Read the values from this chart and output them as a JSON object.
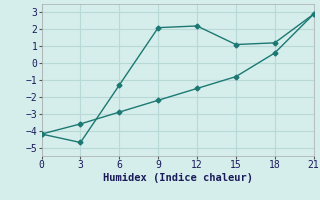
{
  "line1_x": [
    0,
    3,
    6,
    9,
    12,
    15,
    18,
    21
  ],
  "line1_y": [
    -4.2,
    -4.7,
    -1.3,
    2.1,
    2.2,
    1.1,
    1.2,
    2.9
  ],
  "line2_x": [
    0,
    3,
    6,
    9,
    12,
    15,
    18,
    21
  ],
  "line2_y": [
    -4.2,
    -3.6,
    -2.9,
    -2.2,
    -1.5,
    -0.8,
    0.6,
    2.9
  ],
  "color": "#1c7872",
  "bg_color": "#d5eeec",
  "grid_color": "#b8d9d7",
  "xlabel": "Humidex (Indice chaleur)",
  "xlim": [
    0,
    21
  ],
  "ylim": [
    -5.5,
    3.5
  ],
  "xticks": [
    0,
    3,
    6,
    9,
    12,
    15,
    18,
    21
  ],
  "yticks": [
    -5,
    -4,
    -3,
    -2,
    -1,
    0,
    1,
    2,
    3
  ],
  "marker": "D",
  "markersize": 2.5,
  "linewidth": 1.0,
  "xlabel_fontsize": 7.5,
  "tick_fontsize": 7
}
